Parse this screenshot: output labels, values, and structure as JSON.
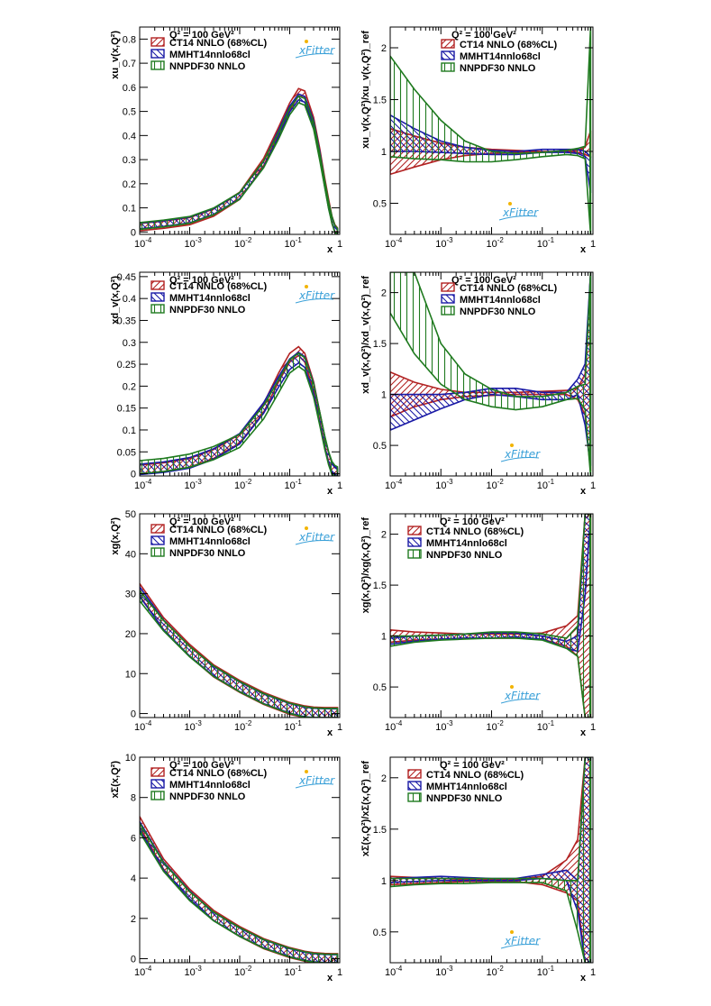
{
  "figure": {
    "q2_label": "Q² = 100 GeV²",
    "logo_text": "xFitter",
    "x_axis_label": "x",
    "x_ticks": [
      {
        "value": 0.0001,
        "base": "10",
        "exp": "-4"
      },
      {
        "value": 0.001,
        "base": "10",
        "exp": "-3"
      },
      {
        "value": 0.01,
        "base": "10",
        "exp": "-2"
      },
      {
        "value": 0.1,
        "base": "10",
        "exp": "-1"
      },
      {
        "value": 1,
        "base": "1",
        "exp": ""
      }
    ],
    "legend": [
      {
        "name": "CT14 NNLO (68%CL)",
        "color": "#b22222",
        "hatch": "diag"
      },
      {
        "name": "MMHT14nnlo68cl",
        "color": "#1a1aa6",
        "hatch": "back"
      },
      {
        "name": "NNPDF30 NNLO",
        "color": "#1f7a1f",
        "hatch": "vert"
      }
    ]
  },
  "chart_data": [
    {
      "id": "uv_abs",
      "type": "line",
      "ylabel": "xu_v(x,Q²)",
      "ylim": [
        -0.01,
        0.85
      ],
      "yticks": [
        "0",
        "0.1",
        "0.2",
        "0.3",
        "0.4",
        "0.5",
        "0.6",
        "0.7",
        "0.8"
      ],
      "x": [
        0.0001,
        0.0003,
        0.001,
        0.003,
        0.01,
        0.03,
        0.06,
        0.1,
        0.15,
        0.2,
        0.3,
        0.4,
        0.5,
        0.6,
        0.7,
        0.8,
        0.9
      ],
      "series": [
        {
          "name": "CT14 NNLO (68%CL)",
          "central": [
            0.02,
            0.03,
            0.045,
            0.08,
            0.15,
            0.29,
            0.42,
            0.52,
            0.58,
            0.57,
            0.46,
            0.33,
            0.21,
            0.12,
            0.05,
            0.015,
            0.002
          ],
          "err": 0.015
        },
        {
          "name": "MMHT14nnlo68cl",
          "central": [
            0.025,
            0.035,
            0.05,
            0.085,
            0.15,
            0.28,
            0.41,
            0.51,
            0.56,
            0.55,
            0.45,
            0.32,
            0.2,
            0.11,
            0.05,
            0.013,
            0.001
          ],
          "err": 0.012
        },
        {
          "name": "NNPDF30 NNLO",
          "central": [
            0.025,
            0.035,
            0.05,
            0.085,
            0.15,
            0.28,
            0.4,
            0.5,
            0.55,
            0.54,
            0.44,
            0.31,
            0.2,
            0.11,
            0.05,
            0.013,
            0.001
          ],
          "err": 0.014
        }
      ]
    },
    {
      "id": "uv_ratio",
      "type": "line",
      "ylabel": "xu_v(x,Q²)/xu_v(x,Q²)_ref",
      "ylim": [
        0.2,
        2.2
      ],
      "yticks": [
        "0.5",
        "1",
        "1.5",
        "2"
      ],
      "x": [
        0.0001,
        0.0003,
        0.001,
        0.003,
        0.01,
        0.03,
        0.1,
        0.3,
        0.5,
        0.7,
        0.9
      ],
      "series": [
        {
          "name": "CT14 NNLO (68%CL)",
          "lower": [
            0.78,
            0.85,
            0.92,
            0.96,
            0.98,
            0.99,
            1.0,
            1.0,
            0.99,
            0.97,
            0.95
          ],
          "upper": [
            1.22,
            1.15,
            1.08,
            1.04,
            1.02,
            1.01,
            1.0,
            1.0,
            1.01,
            1.04,
            1.2
          ]
        },
        {
          "name": "MMHT14nnlo68cl",
          "lower": [
            1.0,
            1.0,
            0.99,
            0.98,
            0.97,
            0.97,
            0.99,
            0.99,
            0.98,
            0.95,
            0.6
          ],
          "upper": [
            1.35,
            1.22,
            1.1,
            1.04,
            1.01,
            1.0,
            1.02,
            1.02,
            1.02,
            1.0,
            0.95
          ]
        },
        {
          "name": "NNPDF30 NNLO",
          "lower": [
            0.95,
            0.93,
            0.92,
            0.9,
            0.9,
            0.92,
            0.95,
            0.97,
            0.96,
            0.93,
            0.2
          ],
          "upper": [
            1.92,
            1.6,
            1.3,
            1.1,
            1.0,
            0.98,
            0.99,
            1.01,
            1.03,
            1.05,
            2.2
          ]
        }
      ]
    },
    {
      "id": "dv_abs",
      "type": "line",
      "ylabel": "xd_v(x,Q²)",
      "ylim": [
        -0.005,
        0.46
      ],
      "yticks": [
        "0",
        "0.05",
        "0.1",
        "0.15",
        "0.2",
        "0.25",
        "0.3",
        "0.35",
        "0.4",
        "0.45"
      ],
      "x": [
        0.0001,
        0.0003,
        0.001,
        0.003,
        0.01,
        0.03,
        0.06,
        0.1,
        0.15,
        0.2,
        0.3,
        0.4,
        0.5,
        0.6,
        0.7,
        0.8,
        0.9
      ],
      "series": [
        {
          "name": "CT14 NNLO (68%CL)",
          "central": [
            0.01,
            0.015,
            0.025,
            0.045,
            0.08,
            0.15,
            0.22,
            0.265,
            0.28,
            0.265,
            0.2,
            0.13,
            0.075,
            0.037,
            0.014,
            0.004,
            0.001
          ],
          "err": 0.01
        },
        {
          "name": "MMHT14nnlo68cl",
          "central": [
            0.01,
            0.015,
            0.025,
            0.045,
            0.08,
            0.15,
            0.21,
            0.25,
            0.265,
            0.255,
            0.195,
            0.127,
            0.073,
            0.036,
            0.014,
            0.004,
            0.001
          ],
          "err": 0.012
        },
        {
          "name": "NNPDF30 NNLO",
          "central": [
            0.015,
            0.02,
            0.03,
            0.047,
            0.075,
            0.14,
            0.2,
            0.245,
            0.26,
            0.25,
            0.19,
            0.125,
            0.072,
            0.035,
            0.013,
            0.004,
            0.001
          ],
          "err": 0.015
        }
      ]
    },
    {
      "id": "dv_ratio",
      "type": "line",
      "ylabel": "xd_v(x,Q²)/xd_v(x,Q²)_ref",
      "ylim": [
        0.2,
        2.2
      ],
      "yticks": [
        "0.5",
        "1",
        "1.5",
        "2"
      ],
      "x": [
        0.0001,
        0.0003,
        0.001,
        0.003,
        0.01,
        0.03,
        0.1,
        0.3,
        0.5,
        0.7,
        0.9
      ],
      "series": [
        {
          "name": "CT14 NNLO (68%CL)",
          "lower": [
            0.78,
            0.88,
            0.95,
            0.98,
            0.99,
            1.0,
            1.0,
            1.0,
            0.95,
            0.8,
            0.25
          ],
          "upper": [
            1.22,
            1.12,
            1.05,
            1.02,
            1.02,
            1.02,
            1.03,
            1.04,
            1.06,
            1.2,
            2.2
          ]
        },
        {
          "name": "MMHT14nnlo68cl",
          "lower": [
            0.65,
            0.75,
            0.86,
            0.95,
            1.0,
            0.98,
            0.95,
            0.95,
            1.0,
            0.7,
            0.3
          ],
          "upper": [
            1.0,
            1.0,
            1.0,
            1.02,
            1.06,
            1.06,
            1.02,
            1.02,
            1.15,
            1.3,
            2.2
          ]
        },
        {
          "name": "NNPDF30 NNLO",
          "lower": [
            1.8,
            1.4,
            1.1,
            0.95,
            0.88,
            0.85,
            0.88,
            0.95,
            0.96,
            0.85,
            0.2
          ],
          "upper": [
            2.2,
            2.2,
            1.5,
            1.2,
            1.05,
            0.98,
            0.98,
            1.02,
            1.08,
            1.1,
            2.2
          ]
        }
      ]
    },
    {
      "id": "g_abs",
      "type": "line",
      "ylabel": "xg(x,Q²)",
      "ylim": [
        -1,
        50
      ],
      "yticks": [
        "0",
        "10",
        "20",
        "30",
        "40",
        "50"
      ],
      "x": [
        0.0001,
        0.0003,
        0.001,
        0.003,
        0.01,
        0.03,
        0.1,
        0.2,
        0.3,
        0.5,
        0.7,
        0.9
      ],
      "series": [
        {
          "name": "CT14 NNLO (68%CL)",
          "central": [
            31,
            22.5,
            15.8,
            10.7,
            6.8,
            3.8,
            1.3,
            0.4,
            0.12,
            0.01,
            0.0,
            0.0
          ],
          "err": 1.5
        },
        {
          "name": "MMHT14nnlo68cl",
          "central": [
            30.5,
            22.2,
            15.6,
            10.6,
            6.7,
            3.7,
            1.3,
            0.4,
            0.12,
            0.01,
            0.0,
            0.0
          ],
          "err": 1.2
        },
        {
          "name": "NNPDF30 NNLO",
          "central": [
            29.5,
            22,
            15.5,
            10.6,
            6.7,
            3.7,
            1.3,
            0.4,
            0.12,
            0.01,
            0.0,
            0.0
          ],
          "err": 1.3
        }
      ]
    },
    {
      "id": "g_ratio",
      "type": "line",
      "ylabel": "xg(x,Q²)/xg(x,Q²)_ref",
      "ylim": [
        0.2,
        2.2
      ],
      "yticks": [
        "0.5",
        "1",
        "1.5",
        "2"
      ],
      "x": [
        0.0001,
        0.0003,
        0.001,
        0.003,
        0.01,
        0.03,
        0.1,
        0.3,
        0.5,
        0.7,
        0.9
      ],
      "series": [
        {
          "name": "CT14 NNLO (68%CL)",
          "lower": [
            0.94,
            0.96,
            0.97,
            0.98,
            0.98,
            0.98,
            0.97,
            0.9,
            0.8,
            0.2,
            0.2
          ],
          "upper": [
            1.06,
            1.04,
            1.03,
            1.02,
            1.02,
            1.02,
            1.03,
            1.1,
            1.2,
            2.2,
            2.2
          ]
        },
        {
          "name": "MMHT14nnlo68cl",
          "lower": [
            0.92,
            0.95,
            0.97,
            0.98,
            0.98,
            0.99,
            0.97,
            0.88,
            0.85,
            1.4,
            2.2
          ],
          "upper": [
            0.98,
            1.0,
            1.01,
            1.02,
            1.03,
            1.03,
            1.0,
            0.95,
            1.0,
            2.2,
            2.2
          ]
        },
        {
          "name": "NNPDF30 NNLO",
          "lower": [
            0.9,
            0.94,
            0.96,
            0.97,
            0.98,
            0.98,
            0.96,
            0.88,
            0.8,
            0.2,
            0.2
          ],
          "upper": [
            1.0,
            1.0,
            1.01,
            1.02,
            1.04,
            1.04,
            1.02,
            0.98,
            1.1,
            2.2,
            2.2
          ]
        }
      ]
    },
    {
      "id": "sigma_abs",
      "type": "line",
      "ylabel": "xΣ(x,Q²)",
      "ylim": [
        -0.2,
        10
      ],
      "yticks": [
        "0",
        "2",
        "4",
        "6",
        "8",
        "10"
      ],
      "x": [
        0.0001,
        0.0003,
        0.001,
        0.003,
        0.01,
        0.03,
        0.1,
        0.2,
        0.3,
        0.5,
        0.7,
        0.9
      ],
      "series": [
        {
          "name": "CT14 NNLO (68%CL)",
          "central": [
            6.8,
            4.7,
            3.2,
            2.15,
            1.35,
            0.75,
            0.3,
            0.12,
            0.05,
            0.01,
            0.0,
            0.0
          ],
          "err": 0.25
        },
        {
          "name": "MMHT14nnlo68cl",
          "central": [
            6.6,
            4.6,
            3.15,
            2.1,
            1.32,
            0.74,
            0.3,
            0.12,
            0.05,
            0.01,
            0.0,
            0.0
          ],
          "err": 0.2
        },
        {
          "name": "NNPDF30 NNLO",
          "central": [
            6.5,
            4.55,
            3.1,
            2.1,
            1.32,
            0.74,
            0.3,
            0.12,
            0.05,
            0.01,
            0.0,
            0.0
          ],
          "err": 0.22
        }
      ]
    },
    {
      "id": "sigma_ratio",
      "type": "line",
      "ylabel": "xΣ(x,Q²)/xΣ(x,Q²)_ref",
      "ylim": [
        0.2,
        2.2
      ],
      "yticks": [
        "0.5",
        "1",
        "1.5",
        "2"
      ],
      "x": [
        0.0001,
        0.0003,
        0.001,
        0.003,
        0.01,
        0.03,
        0.1,
        0.3,
        0.5,
        0.7,
        0.9
      ],
      "series": [
        {
          "name": "CT14 NNLO (68%CL)",
          "lower": [
            0.96,
            0.97,
            0.98,
            0.99,
            0.99,
            0.99,
            0.96,
            0.88,
            0.8,
            0.2,
            0.2
          ],
          "upper": [
            1.04,
            1.03,
            1.02,
            1.01,
            1.01,
            1.01,
            1.04,
            1.2,
            1.4,
            2.2,
            2.2
          ]
        },
        {
          "name": "MMHT14nnlo68cl",
          "lower": [
            0.98,
            0.99,
            1.0,
            1.0,
            1.0,
            1.0,
            1.02,
            1.0,
            0.7,
            0.2,
            0.2
          ],
          "upper": [
            1.02,
            1.03,
            1.04,
            1.03,
            1.02,
            1.02,
            1.06,
            1.1,
            1.0,
            2.2,
            2.2
          ]
        },
        {
          "name": "NNPDF30 NNLO",
          "lower": [
            0.94,
            0.96,
            0.97,
            0.97,
            0.98,
            0.98,
            0.98,
            0.9,
            0.5,
            0.2,
            0.2
          ],
          "upper": [
            1.02,
            1.02,
            1.02,
            1.02,
            1.02,
            1.02,
            1.02,
            1.0,
            1.0,
            2.2,
            2.2
          ]
        }
      ]
    }
  ]
}
